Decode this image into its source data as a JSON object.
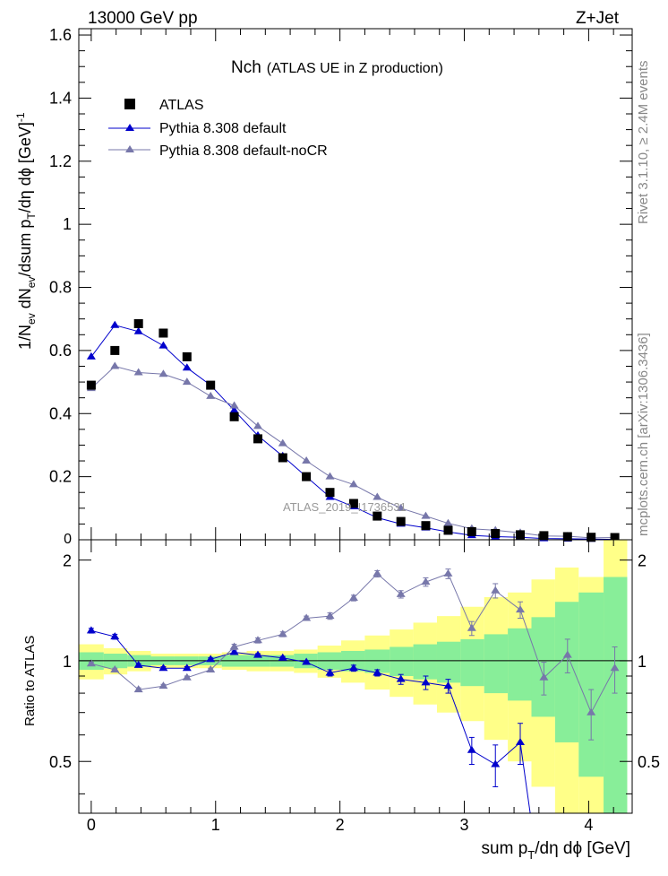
{
  "header": {
    "energy_label": "13000 GeV pp",
    "process_label": "Z+Jet"
  },
  "side_labels": {
    "rivet": "Rivet 3.1.10, ≥ 2.4M events",
    "source": "mcplots.cern.ch [arXiv:1306.3436]"
  },
  "chart_data": [
    {
      "type": "scatter",
      "panel": "main",
      "title": "Nch",
      "subtitle": "(ATLAS UE in Z production)",
      "watermark": "ATLAS_2019_I1736531",
      "xlabel": "sum p_T/dη dφ [GeV]",
      "ylabel": "1/N_ev dN_ev/dsum p_T/dη dφ [GeV]^-1",
      "xlim": [
        -0.1,
        4.35
      ],
      "ylim": [
        0,
        1.62
      ],
      "x_ticks": [
        0,
        1,
        2,
        3,
        4
      ],
      "y_ticks": [
        0.2,
        0.4,
        0.6,
        0.8,
        1,
        1.2,
        1.4,
        1.6
      ],
      "y_tick_labels": [
        "0.2",
        "0.4",
        "0.6",
        "0.8",
        "1",
        "1.2",
        "1.4",
        "1.6"
      ],
      "y_zero_label": "0",
      "legend_position": "top-left",
      "series": [
        {
          "name": "ATLAS",
          "marker": "square",
          "color": "#000000",
          "x": [
            0.0,
            0.19,
            0.38,
            0.58,
            0.77,
            0.96,
            1.15,
            1.34,
            1.54,
            1.73,
            1.92,
            2.11,
            2.3,
            2.49,
            2.69,
            2.87,
            3.06,
            3.25,
            3.45,
            3.64,
            3.83,
            4.02,
            4.21
          ],
          "y": [
            0.49,
            0.6,
            0.685,
            0.655,
            0.58,
            0.49,
            0.39,
            0.32,
            0.26,
            0.2,
            0.15,
            0.115,
            0.075,
            0.058,
            0.045,
            0.03,
            0.026,
            0.02,
            0.016,
            0.013,
            0.01,
            0.008,
            0.007
          ]
        },
        {
          "name": "Pythia 8.308 default",
          "marker": "triangle",
          "color": "#0000cc",
          "x": [
            0.0,
            0.19,
            0.38,
            0.58,
            0.77,
            0.96,
            1.15,
            1.34,
            1.54,
            1.73,
            1.92,
            2.11,
            2.3,
            2.49,
            2.69,
            2.87,
            3.06,
            3.25,
            3.45,
            3.64,
            3.83,
            4.02,
            4.21
          ],
          "y": [
            0.58,
            0.68,
            0.66,
            0.615,
            0.545,
            0.49,
            0.41,
            0.33,
            0.265,
            0.2,
            0.135,
            0.105,
            0.07,
            0.05,
            0.038,
            0.025,
            0.014,
            0.01,
            0.008,
            0.004,
            0.003,
            0.002,
            0.001
          ]
        },
        {
          "name": "Pythia 8.308 default-noCR",
          "marker": "triangle",
          "color": "#7777aa",
          "x": [
            0.0,
            0.19,
            0.38,
            0.58,
            0.77,
            0.96,
            1.15,
            1.34,
            1.54,
            1.73,
            1.92,
            2.11,
            2.3,
            2.49,
            2.69,
            2.87,
            3.06,
            3.25,
            3.45,
            3.64,
            3.83,
            4.02,
            4.21
          ],
          "y": [
            0.48,
            0.55,
            0.53,
            0.525,
            0.5,
            0.455,
            0.425,
            0.36,
            0.305,
            0.25,
            0.2,
            0.175,
            0.135,
            0.1,
            0.075,
            0.052,
            0.035,
            0.03,
            0.022,
            0.012,
            0.011,
            0.006,
            0.007
          ]
        }
      ]
    },
    {
      "type": "line",
      "panel": "ratio",
      "ylabel": "Ratio to ATLAS",
      "xlim": [
        -0.1,
        4.35
      ],
      "ylim": [
        0.35,
        2.3
      ],
      "reference_line": 1,
      "x_ticks": [
        0,
        1,
        2,
        3,
        4
      ],
      "x_tick_labels": [
        "0",
        "1",
        "2",
        "3",
        "4"
      ],
      "y_ticks": [
        0.5,
        1,
        2
      ],
      "y_tick_labels": [
        "0.5",
        "1",
        "2"
      ],
      "bins_x": [
        -0.1,
        0.1,
        0.29,
        0.48,
        0.67,
        0.86,
        1.05,
        1.25,
        1.44,
        1.63,
        1.82,
        2.01,
        2.2,
        2.4,
        2.59,
        2.78,
        2.97,
        3.16,
        3.35,
        3.54,
        3.73,
        3.92,
        4.12,
        4.31
      ],
      "band_green_lo": [
        0.94,
        0.95,
        0.96,
        0.97,
        0.97,
        0.97,
        0.96,
        0.96,
        0.96,
        0.95,
        0.94,
        0.93,
        0.92,
        0.9,
        0.88,
        0.86,
        0.84,
        0.8,
        0.76,
        0.68,
        0.57,
        0.45,
        0.35
      ],
      "band_green_hi": [
        1.06,
        1.05,
        1.04,
        1.03,
        1.03,
        1.03,
        1.04,
        1.04,
        1.04,
        1.05,
        1.06,
        1.07,
        1.08,
        1.1,
        1.12,
        1.14,
        1.16,
        1.2,
        1.25,
        1.35,
        1.5,
        1.6,
        1.78
      ],
      "band_yellow_lo": [
        0.88,
        0.91,
        0.93,
        0.95,
        0.95,
        0.95,
        0.94,
        0.93,
        0.93,
        0.92,
        0.89,
        0.86,
        0.82,
        0.78,
        0.74,
        0.7,
        0.66,
        0.58,
        0.5,
        0.42,
        0.35,
        0.35,
        0.35
      ],
      "band_yellow_hi": [
        1.12,
        1.09,
        1.07,
        1.05,
        1.05,
        1.05,
        1.06,
        1.07,
        1.07,
        1.08,
        1.11,
        1.15,
        1.19,
        1.24,
        1.3,
        1.36,
        1.45,
        1.55,
        1.6,
        1.75,
        1.9,
        1.78,
        2.3
      ],
      "series": [
        {
          "name": "Pythia 8.308 default",
          "color": "#0000cc",
          "x": [
            0.0,
            0.19,
            0.38,
            0.58,
            0.77,
            0.96,
            1.15,
            1.34,
            1.54,
            1.73,
            1.92,
            2.11,
            2.3,
            2.49,
            2.69,
            2.87,
            3.06,
            3.25,
            3.45,
            3.53
          ],
          "y": [
            1.23,
            1.18,
            0.97,
            0.95,
            0.95,
            1.01,
            1.06,
            1.04,
            1.02,
            0.99,
            0.92,
            0.95,
            0.92,
            0.88,
            0.86,
            0.84,
            0.54,
            0.49,
            0.57,
            0.35
          ],
          "err": [
            0.02,
            0.02,
            0.01,
            0.01,
            0.01,
            0.01,
            0.01,
            0.01,
            0.01,
            0.01,
            0.02,
            0.02,
            0.02,
            0.03,
            0.04,
            0.04,
            0.05,
            0.07,
            0.08,
            0
          ]
        },
        {
          "name": "Pythia 8.308 default-noCR",
          "color": "#7777aa",
          "x": [
            0.0,
            0.19,
            0.38,
            0.58,
            0.77,
            0.96,
            1.15,
            1.34,
            1.54,
            1.73,
            1.92,
            2.11,
            2.3,
            2.49,
            2.69,
            2.87,
            3.06,
            3.25,
            3.45,
            3.64,
            3.83,
            4.02,
            4.21
          ],
          "y": [
            0.98,
            0.94,
            0.82,
            0.84,
            0.89,
            0.94,
            1.1,
            1.15,
            1.2,
            1.34,
            1.36,
            1.54,
            1.82,
            1.58,
            1.72,
            1.82,
            1.25,
            1.62,
            1.42,
            0.89,
            1.04,
            0.7,
            0.95
          ],
          "err": [
            0.01,
            0.01,
            0.01,
            0.01,
            0.01,
            0.01,
            0.02,
            0.02,
            0.02,
            0.02,
            0.03,
            0.03,
            0.04,
            0.04,
            0.05,
            0.06,
            0.06,
            0.08,
            0.08,
            0.1,
            0.12,
            0.12,
            0.15
          ]
        }
      ]
    }
  ]
}
